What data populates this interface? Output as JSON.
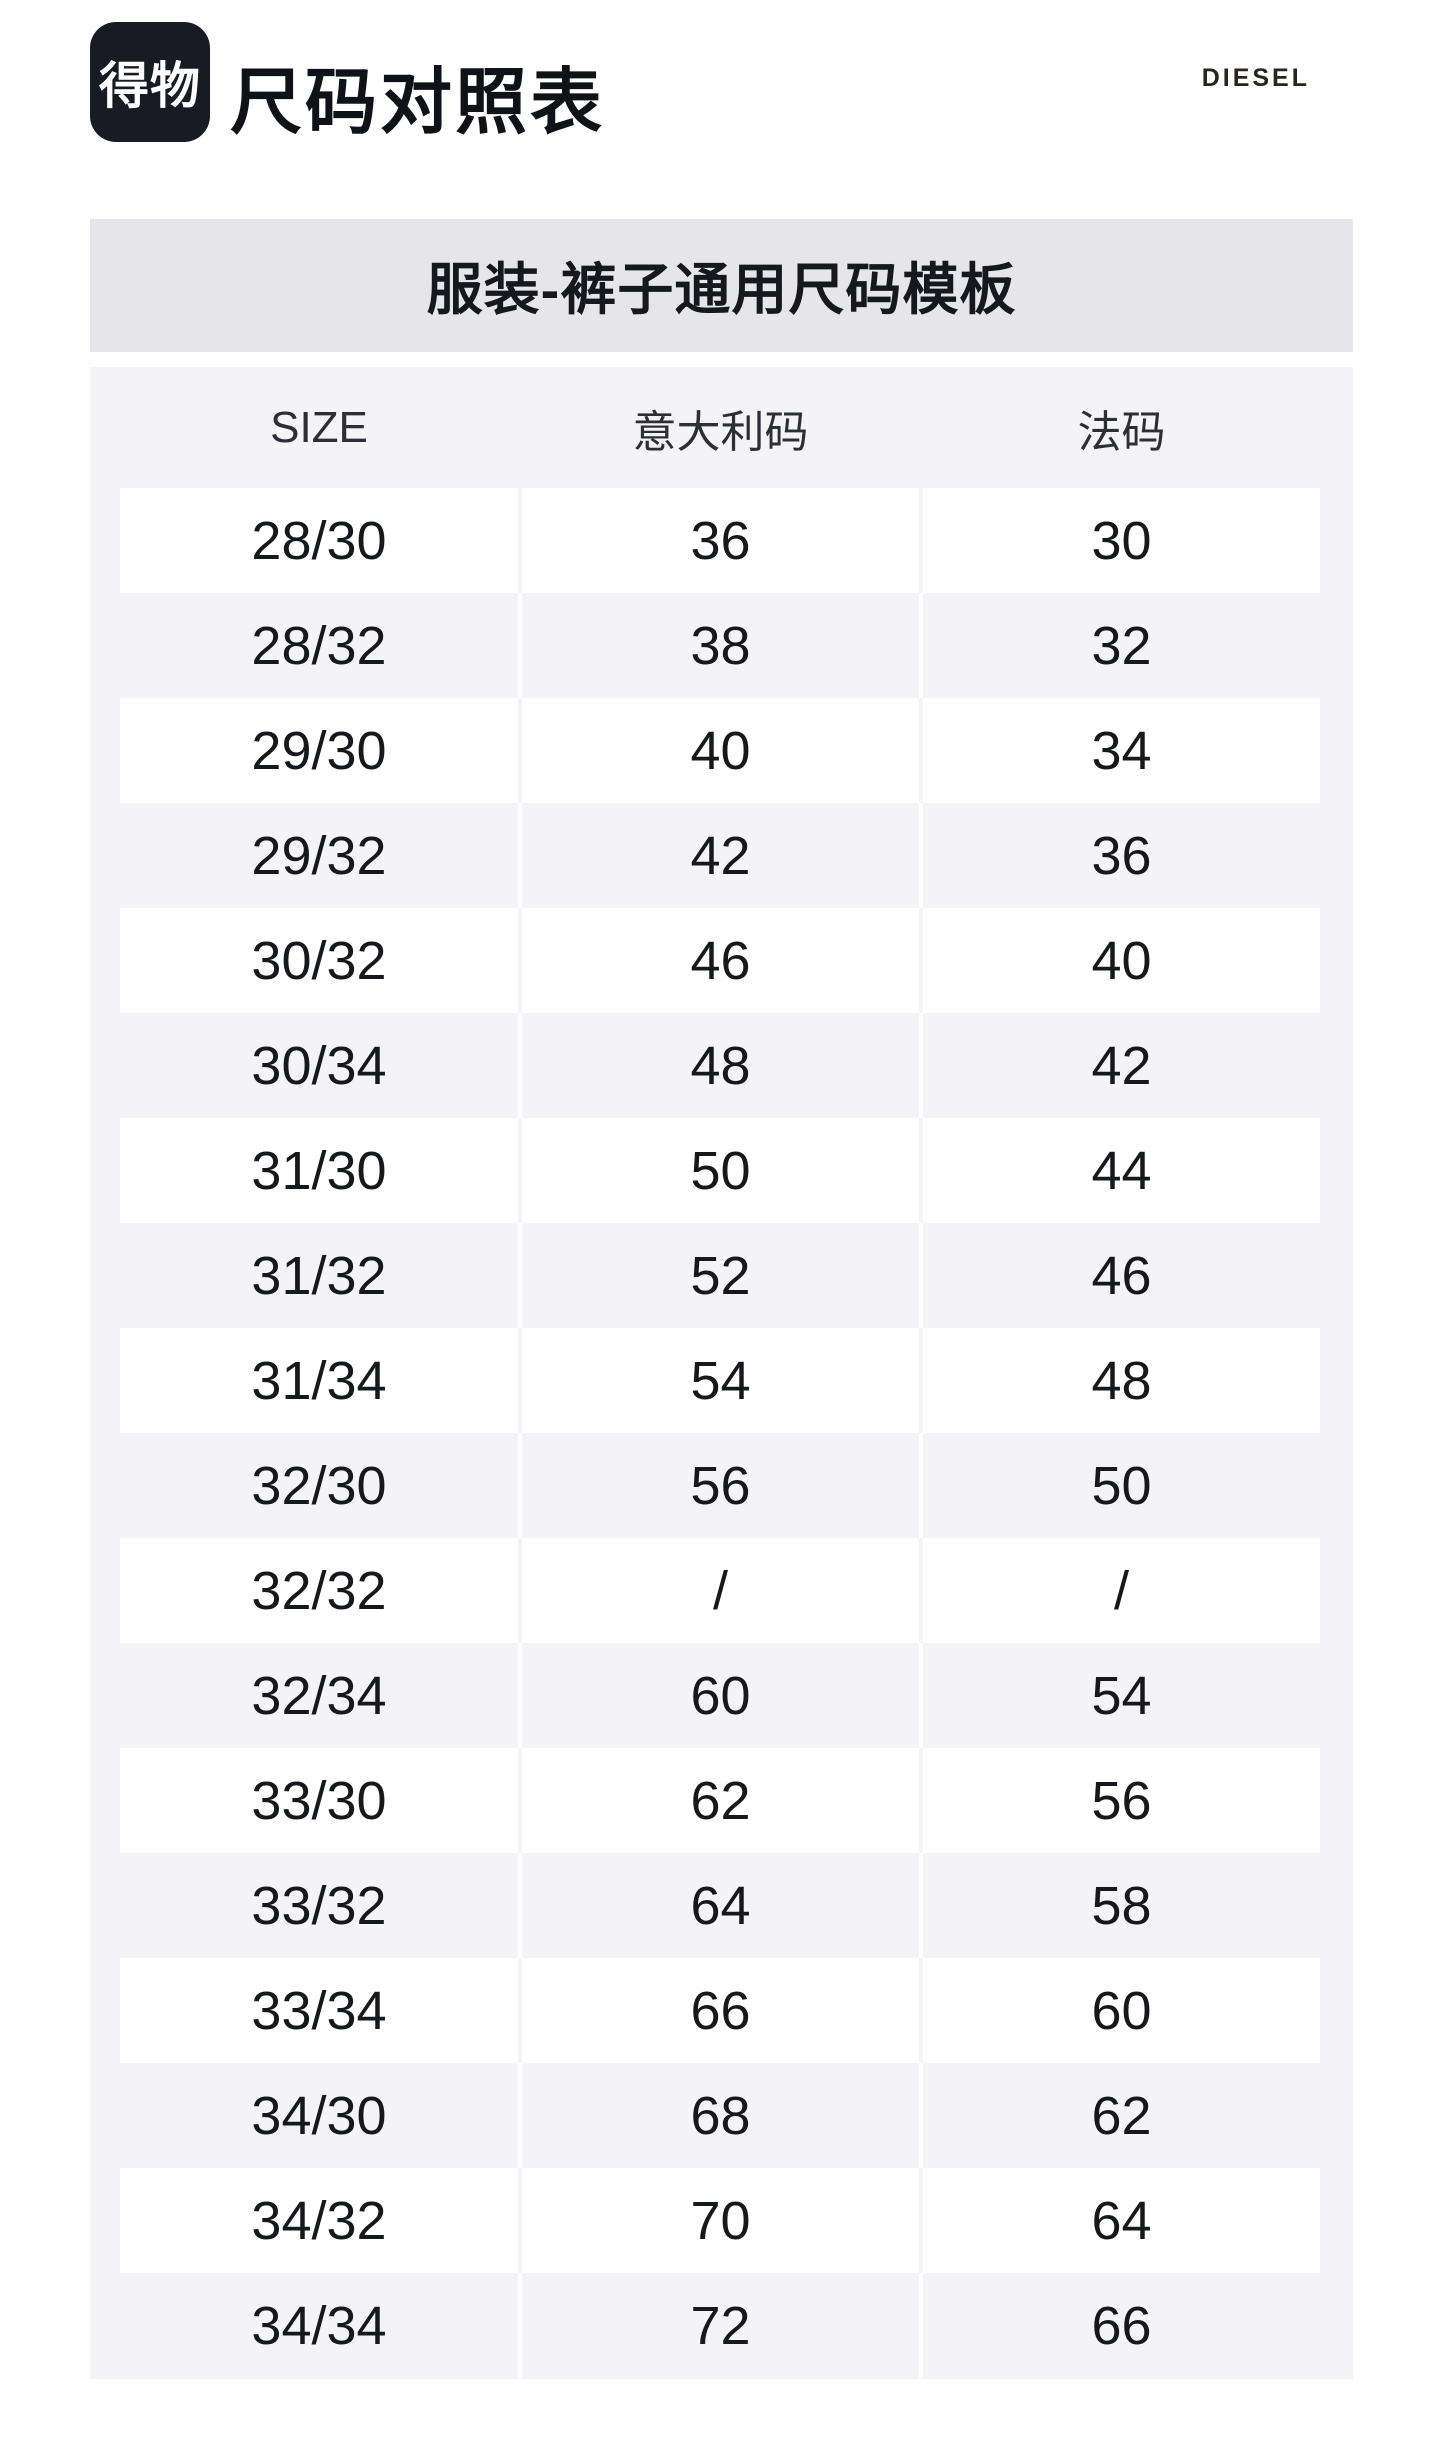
{
  "header": {
    "logo_text": "得物",
    "title": "尺码对照表",
    "brand": "DIESEL"
  },
  "template_bar": {
    "title": "服装-裤子通用尺码模板"
  },
  "table": {
    "columns": [
      "SIZE",
      "意大利码",
      "法码"
    ],
    "rows": [
      [
        "28/30",
        "36",
        "30"
      ],
      [
        "28/32",
        "38",
        "32"
      ],
      [
        "29/30",
        "40",
        "34"
      ],
      [
        "29/32",
        "42",
        "36"
      ],
      [
        "30/32",
        "46",
        "40"
      ],
      [
        "30/34",
        "48",
        "42"
      ],
      [
        "31/30",
        "50",
        "44"
      ],
      [
        "31/32",
        "52",
        "46"
      ],
      [
        "31/34",
        "54",
        "48"
      ],
      [
        "32/30",
        "56",
        "50"
      ],
      [
        "32/32",
        "/",
        "/"
      ],
      [
        "32/34",
        "60",
        "54"
      ],
      [
        "33/30",
        "62",
        "56"
      ],
      [
        "33/32",
        "64",
        "58"
      ],
      [
        "33/34",
        "66",
        "60"
      ],
      [
        "34/30",
        "68",
        "62"
      ],
      [
        "34/32",
        "70",
        "64"
      ],
      [
        "34/34",
        "72",
        "66"
      ]
    ]
  },
  "colors": {
    "badge_bg": "#181b24",
    "bar_bg": "#e6e6ea",
    "panel_bg": "#f4f4f7",
    "row_white": "#ffffff",
    "text": "#17181c"
  }
}
